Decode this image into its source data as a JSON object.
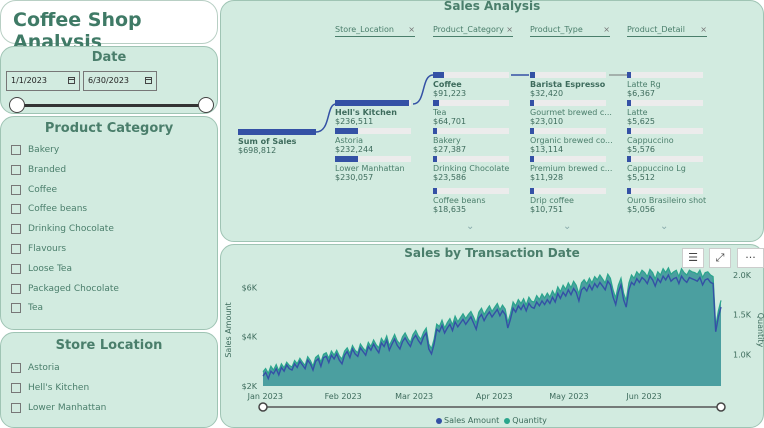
{
  "app": {
    "title": "Coffee Shop Analysis"
  },
  "date_filter": {
    "title": "Date",
    "start": "1/1/2023",
    "end": "6/30/2023",
    "range_fraction": [
      0,
      1
    ]
  },
  "category_filter": {
    "title": "Product Category",
    "items": [
      "Bakery",
      "Branded",
      "Coffee",
      "Coffee beans",
      "Drinking Chocolate",
      "Flavours",
      "Loose Tea",
      "Packaged Chocolate",
      "Tea"
    ]
  },
  "store_filter": {
    "title": "Store Location",
    "items": [
      "Astoria",
      "Hell's Kitchen",
      "Lower Manhattan"
    ]
  },
  "decomposition": {
    "title": "Sales Analysis",
    "headers": [
      "Store_Location",
      "Product_Category",
      "Product_Type",
      "Product_Detail"
    ],
    "close_glyph": "×",
    "root": {
      "label": "Sum of Sales",
      "value": "$698,812",
      "fraction": 1.0
    },
    "levels": [
      {
        "nodes": [
          {
            "label": "Hell's Kitchen",
            "value": "$236,511",
            "fraction": 0.98,
            "selected": true
          },
          {
            "label": "Astoria",
            "value": "$232,244",
            "fraction": 0.0,
            "selected": false
          },
          {
            "label": "Lower Manhattan",
            "value": "$230,057",
            "fraction": 0.0,
            "selected": false
          }
        ]
      },
      {
        "nodes": [
          {
            "label": "Coffee",
            "value": "$91,223",
            "fraction": 0.14,
            "selected": true
          },
          {
            "label": "Tea",
            "value": "$64,701",
            "fraction": 0.08,
            "selected": false
          },
          {
            "label": "Bakery",
            "value": "$27,387",
            "fraction": 0.04,
            "selected": false
          },
          {
            "label": "Drinking Chocolate",
            "value": "$23,586",
            "fraction": 0.03,
            "selected": false
          },
          {
            "label": "Coffee beans",
            "value": "$18,635",
            "fraction": 0.02,
            "selected": false
          }
        ]
      },
      {
        "nodes": [
          {
            "label": "Barista Espresso",
            "value": "$32,420",
            "fraction": 0.07,
            "selected": true
          },
          {
            "label": "Gourmet brewed c...",
            "value": "$23,010",
            "fraction": 0.02,
            "selected": false
          },
          {
            "label": "Organic brewed co...",
            "value": "$13,114",
            "fraction": 0.02,
            "selected": false
          },
          {
            "label": "Premium brewed c...",
            "value": "$11,928",
            "fraction": 0.02,
            "selected": false
          },
          {
            "label": "Drip coffee",
            "value": "$10,751",
            "fraction": 0.02,
            "selected": false
          }
        ]
      },
      {
        "nodes": [
          {
            "label": "Latte Rg",
            "value": "$6,367",
            "fraction": 0.02,
            "selected": false
          },
          {
            "label": "Latte",
            "value": "$5,625",
            "fraction": 0.02,
            "selected": false
          },
          {
            "label": "Cappuccino",
            "value": "$5,576",
            "fraction": 0.02,
            "selected": false
          },
          {
            "label": "Cappuccino Lg",
            "value": "$5,512",
            "fraction": 0.02,
            "selected": false
          },
          {
            "label": "Ouro Brasileiro shot",
            "value": "$5,056",
            "fraction": 0.02,
            "selected": false
          }
        ]
      }
    ],
    "more_glyph": "⌄"
  },
  "toolbar": {
    "filter_icon": "filter-icon",
    "focus_icon": "focus-mode-icon",
    "more_icon": "more-options-icon",
    "filter_glyph": "☰",
    "focus_glyph": "⤢",
    "more_glyph": "···"
  },
  "chart_data": {
    "type": "area",
    "title": "Sales by Transaction Date",
    "xlabel": "",
    "ylabel": "Sales Amount",
    "y2label": "Quantity",
    "x_ticks": [
      "Jan 2023",
      "Feb 2023",
      "Mar 2023",
      "Apr 2023",
      "May 2023",
      "Jun 2023"
    ],
    "y_ticks": [
      "$2K",
      "$4K",
      "$6K"
    ],
    "y2_ticks": [
      "1.0K",
      "1.5K",
      "2.0K"
    ],
    "ylim": [
      2000,
      6500
    ],
    "y2lim": [
      600,
      2000
    ],
    "legend": [
      "Sales Amount",
      "Quantity"
    ],
    "legend_position": "bottom",
    "colors": {
      "sales": "#3451a5",
      "quantity": "#2aa58c",
      "area": "#4b9fa0"
    },
    "series": [
      {
        "name": "Sales Amount",
        "values": [
          2400,
          2550,
          2300,
          2600,
          2500,
          2700,
          2450,
          2750,
          2600,
          2850,
          2700,
          2650,
          2900,
          2750,
          3000,
          2850,
          2700,
          3050,
          2900,
          2650,
          3000,
          3100,
          2800,
          3150,
          3200,
          2950,
          3250,
          3100,
          3300,
          3050,
          2900,
          3250,
          3400,
          3150,
          3500,
          3300,
          3200,
          3550,
          3400,
          3250,
          3600,
          3450,
          3700,
          3500,
          3350,
          3750,
          3600,
          3850,
          3450,
          3700,
          3900,
          3650,
          3500,
          3800,
          3950,
          3750,
          3600,
          3900,
          4050,
          3850,
          3700,
          4000,
          4150,
          3500,
          3300,
          3700,
          4300,
          4200,
          4450,
          4150,
          4350,
          4500,
          4250,
          4600,
          4400,
          4550,
          4700,
          4500,
          4650,
          4800,
          4550,
          4300,
          4750,
          4900,
          4650,
          4850,
          5000,
          4800,
          4950,
          5100,
          4850,
          5050,
          4900,
          4350,
          4700,
          5150,
          5000,
          5250,
          5100,
          5300,
          5050,
          5350,
          5200,
          5150,
          5400,
          5250,
          5450,
          5300,
          5500,
          5350,
          5600,
          5400,
          5750,
          5550,
          5800,
          5650,
          5900,
          5700,
          5950,
          5800,
          5450,
          5900,
          6000,
          5850,
          6100,
          5900,
          6150,
          6000,
          6200,
          6050,
          5900,
          6250,
          6100,
          5600,
          5300,
          5800,
          6100,
          5500,
          5200,
          5900,
          6200,
          6100,
          6350,
          6200,
          6400,
          6300,
          6150,
          6450,
          6300,
          6050,
          6350,
          6200,
          6450,
          6300,
          6500,
          6250,
          6350,
          6400,
          6150,
          6450,
          6300,
          6200,
          6400,
          6350,
          6300,
          6250,
          6400,
          6100,
          6300,
          6350,
          6200,
          6150,
          4200,
          4800,
          5200
        ]
      },
      {
        "name": "Quantity",
        "values": [
          780,
          820,
          760,
          850,
          800,
          870,
          790,
          880,
          830,
          900,
          860,
          840,
          920,
          880,
          950,
          900,
          860,
          970,
          920,
          850,
          960,
          990,
          900,
          1000,
          1020,
          950,
          1040,
          990,
          1050,
          980,
          940,
          1040,
          1080,
          1010,
          1110,
          1050,
          1020,
          1130,
          1080,
          1040,
          1150,
          1100,
          1180,
          1120,
          1080,
          1200,
          1150,
          1230,
          1110,
          1180,
          1250,
          1170,
          1130,
          1220,
          1270,
          1200,
          1150,
          1250,
          1300,
          1230,
          1190,
          1280,
          1330,
          1130,
          1070,
          1190,
          1380,
          1350,
          1430,
          1330,
          1400,
          1450,
          1370,
          1480,
          1410,
          1460,
          1510,
          1450,
          1500,
          1540,
          1470,
          1390,
          1530,
          1580,
          1500,
          1560,
          1610,
          1540,
          1590,
          1640,
          1560,
          1620,
          1570,
          1400,
          1510,
          1660,
          1610,
          1690,
          1640,
          1700,
          1620,
          1720,
          1670,
          1660,
          1740,
          1690,
          1760,
          1710,
          1770,
          1720,
          1800,
          1740,
          1850,
          1790,
          1870,
          1820,
          1900,
          1840,
          1920,
          1870,
          1760,
          1900,
          1940,
          1890,
          1960,
          1900,
          1980,
          1940,
          2000,
          1950,
          1900,
          2010,
          1960,
          1810,
          1710,
          1870,
          1960,
          1770,
          1680,
          1900,
          2000,
          1960,
          2040,
          2000,
          2060,
          2030,
          1980,
          2070,
          2030,
          1950,
          2040,
          2000,
          2080,
          2030,
          2090,
          2010,
          2040,
          2060,
          1980,
          2080,
          2030,
          2000,
          2060,
          2040,
          2030,
          2010,
          2060,
          1970,
          2030,
          2040,
          2000,
          1980,
          1350,
          1550,
          1680
        ]
      }
    ]
  }
}
